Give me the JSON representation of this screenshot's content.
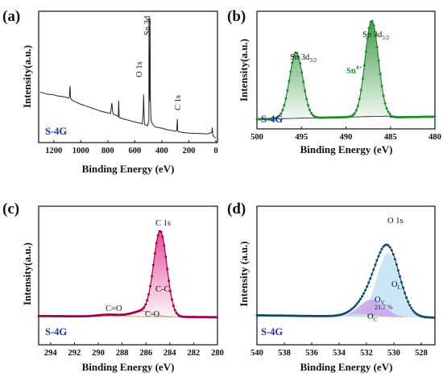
{
  "colors": {
    "a": "#222222",
    "b": "#1e8a2a",
    "c": "#a0004f",
    "d": "#0b4a68",
    "sample": "#1f2fbf",
    "axis": "#111111"
  },
  "chart_data": [
    {
      "panel": "(a)",
      "type": "line",
      "xlabel": "Binding Energy (eV)",
      "ylabel": "Intensity(a.u.)",
      "xlim": [
        1300,
        0
      ],
      "xticks": [
        "1200",
        "1000",
        "800",
        "600",
        "400",
        "200",
        "0"
      ],
      "sample": "S-4G",
      "annotations": [
        "Sn 3d",
        "O 1s",
        "C 1s"
      ],
      "x": [
        1300,
        1270,
        1240,
        1210,
        1180,
        1150,
        1120,
        1100,
        1090,
        1085,
        1080,
        1075,
        1070,
        1060,
        1040,
        1000,
        960,
        920,
        880,
        840,
        800,
        780,
        775,
        770,
        765,
        760,
        740,
        722,
        720,
        718,
        716,
        714,
        700,
        650,
        600,
        560,
        545,
        538,
        535,
        532,
        529,
        526,
        520,
        505,
        496,
        495,
        492,
        488,
        487,
        485,
        480,
        470,
        450,
        400,
        350,
        300,
        290,
        286,
        285,
        284,
        282,
        270,
        250,
        200,
        150,
        100,
        60,
        30,
        26,
        25,
        24,
        20,
        10,
        0
      ],
      "y": [
        0.38,
        0.37,
        0.36,
        0.36,
        0.35,
        0.345,
        0.34,
        0.335,
        0.33,
        0.34,
        0.43,
        0.33,
        0.32,
        0.31,
        0.3,
        0.28,
        0.265,
        0.25,
        0.235,
        0.22,
        0.21,
        0.205,
        0.24,
        0.29,
        0.23,
        0.2,
        0.19,
        0.18,
        0.31,
        0.26,
        0.18,
        0.17,
        0.165,
        0.15,
        0.135,
        0.125,
        0.12,
        0.21,
        0.36,
        0.22,
        0.12,
        0.115,
        0.11,
        0.105,
        0.15,
        0.98,
        0.4,
        0.3,
        0.98,
        0.32,
        0.15,
        0.12,
        0.095,
        0.085,
        0.07,
        0.06,
        0.065,
        0.13,
        0.16,
        0.12,
        0.06,
        0.055,
        0.05,
        0.045,
        0.042,
        0.04,
        0.038,
        0.05,
        0.09,
        0.07,
        0.045,
        0.02,
        0.01,
        0.005
      ]
    },
    {
      "panel": "(b)",
      "type": "line",
      "xlabel": "Binding Energy (eV)",
      "ylabel": "Intensity(a.u.)",
      "xlim": [
        500,
        480
      ],
      "xticks": [
        "500",
        "495",
        "490",
        "485",
        "480"
      ],
      "sample": "S-4G",
      "annotations": [
        "Sn 3d3/2",
        "Sn 3d5/2",
        "Sn4+"
      ],
      "peaks": [
        {
          "label": "Sn 3d3/2",
          "center": 495.6,
          "height": 0.62
        },
        {
          "label": "Sn 3d5/2",
          "center": 487.1,
          "height": 0.9
        }
      ]
    },
    {
      "panel": "(c)",
      "type": "line",
      "xlabel": "Binding Energy (eV)",
      "ylabel": "Intensity(a.u.)",
      "xlim": [
        295,
        280
      ],
      "xticks": [
        "294",
        "292",
        "290",
        "288",
        "286",
        "284",
        "282",
        "280"
      ],
      "sample": "S-4G",
      "annotations": [
        "C 1s",
        "C-C",
        "C-O",
        "C=O"
      ],
      "peaks": [
        {
          "label": "C-C",
          "center": 284.8,
          "height": 0.92
        },
        {
          "label": "C-O",
          "center": 286.3,
          "height": 0.06
        },
        {
          "label": "C=O",
          "center": 289.1,
          "height": 0.02
        }
      ]
    },
    {
      "panel": "(d)",
      "type": "line",
      "xlabel": "Binding Energy (eV)",
      "ylabel": "Intensity (a.u.)",
      "xlim": [
        540,
        527
      ],
      "xticks": [
        "540",
        "538",
        "536",
        "534",
        "532",
        "530",
        "528"
      ],
      "sample": "S-4G",
      "annotations": [
        "O 1s",
        "OL",
        "OV",
        "OC",
        "21.7 %"
      ],
      "peaks": [
        {
          "label": "OL",
          "center": 530.4,
          "height": 0.7
        },
        {
          "label": "OV",
          "center": 531.6,
          "height": 0.19
        },
        {
          "label": "OC",
          "center": 532.6,
          "height": 0.03
        }
      ]
    }
  ],
  "panel_labels": [
    "(a)",
    "(b)",
    "(c)",
    "(d)"
  ],
  "sample_labels": [
    "S-4G",
    "S-4G",
    "S-4G",
    "S-4G"
  ],
  "axis_labels": {
    "x": "Binding Energy (eV)",
    "y_a": "Intensity(a.u.)",
    "y_b": "Intensity(a.u.)",
    "y_c": "Intensity(a.u.)",
    "y_d": "Intensity (a.u.)"
  },
  "ticks": {
    "a": [
      "1200",
      "1000",
      "800",
      "600",
      "400",
      "200",
      "0"
    ],
    "b": [
      "500",
      "495",
      "490",
      "485",
      "480"
    ],
    "c": [
      "294",
      "292",
      "290",
      "288",
      "286",
      "284",
      "282",
      "280"
    ],
    "d": [
      "540",
      "538",
      "536",
      "534",
      "532",
      "530",
      "528"
    ]
  },
  "annot": {
    "a_sn": "Sn 3d",
    "a_o": "O 1s",
    "a_c": "C 1s",
    "b_sn32": "Sn 3d",
    "b_sn32_sub": "3/2",
    "b_sn52": "Sn 3d",
    "b_sn52_sub": "5/2",
    "b_sn4": "Sn",
    "b_sn4_sup": "4+",
    "c_c1s": "C 1s",
    "c_cc": "C-C",
    "c_co": "C-O",
    "c_ceo": "C=O",
    "d_o1s": "O 1s",
    "d_o": "O",
    "d_l": "L",
    "d_v": "V",
    "d_c": "C",
    "d_pct": "21.7 %"
  }
}
